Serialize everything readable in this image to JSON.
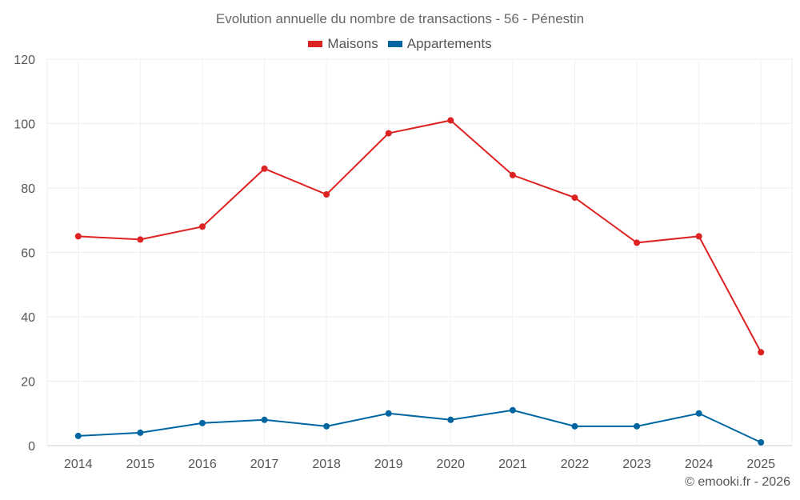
{
  "chart_data": {
    "type": "line",
    "title": "Evolution annuelle du nombre de transactions - 56 - Pénestin",
    "categories": [
      "2014",
      "2015",
      "2016",
      "2017",
      "2018",
      "2019",
      "2020",
      "2021",
      "2022",
      "2023",
      "2024",
      "2025"
    ],
    "series": [
      {
        "name": "Maisons",
        "color": "#dd2222",
        "values": [
          65,
          64,
          68,
          86,
          78,
          97,
          101,
          84,
          77,
          63,
          65,
          29
        ]
      },
      {
        "name": "Appartements",
        "color": "#0066a1",
        "values": [
          3,
          4,
          7,
          8,
          6,
          10,
          8,
          11,
          6,
          6,
          10,
          1
        ]
      }
    ],
    "ylim": [
      0,
      120
    ],
    "yticks": [
      0,
      20,
      40,
      60,
      80,
      100,
      120
    ],
    "grid": true,
    "legend_position": "top-center",
    "xlabel": "",
    "ylabel": ""
  },
  "credit": "© emooki.fr - 2026"
}
